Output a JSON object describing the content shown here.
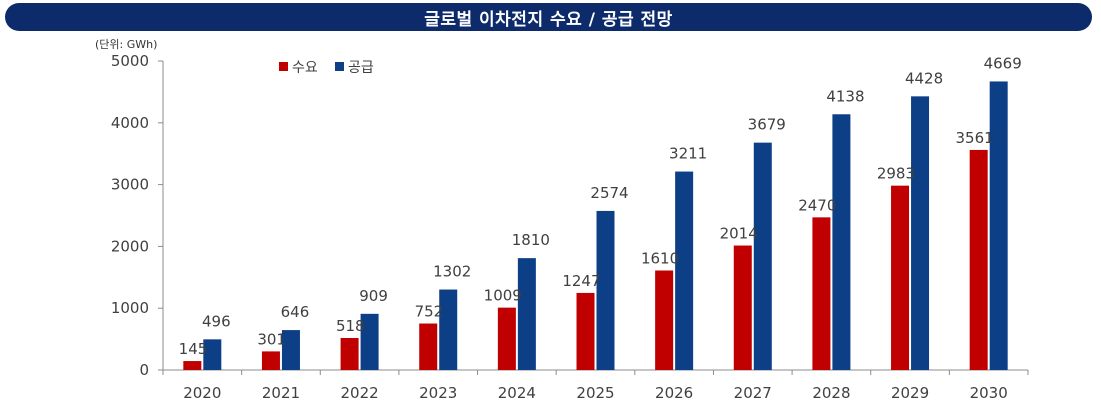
{
  "title": "글로벌 이차전지 수요 / 공급 전망",
  "unit_label": "(단위: GWh)",
  "colors": {
    "title_bg": "#0d2b6b",
    "demand": "#c00000",
    "supply": "#0d3f86",
    "axis": "#404040"
  },
  "chart_data": {
    "type": "bar",
    "title": "글로벌 이차전지 수요 / 공급 전망",
    "xlabel": "",
    "ylabel": "(단위: GWh)",
    "categories": [
      "2020",
      "2021",
      "2022",
      "2023",
      "2024",
      "2025",
      "2026",
      "2027",
      "2028",
      "2029",
      "2030"
    ],
    "series": [
      {
        "name": "수요",
        "values": [
          145,
          301,
          518,
          752,
          1009,
          1247,
          1610,
          2014,
          2470,
          2983,
          3561
        ]
      },
      {
        "name": "공급",
        "values": [
          496,
          646,
          909,
          1302,
          1810,
          2574,
          3211,
          3679,
          4138,
          4428,
          4669
        ]
      }
    ],
    "ylim": [
      0,
      5000
    ],
    "yticks": [
      0,
      1000,
      2000,
      3000,
      4000,
      5000
    ],
    "grid": false,
    "legend": "top-left"
  }
}
